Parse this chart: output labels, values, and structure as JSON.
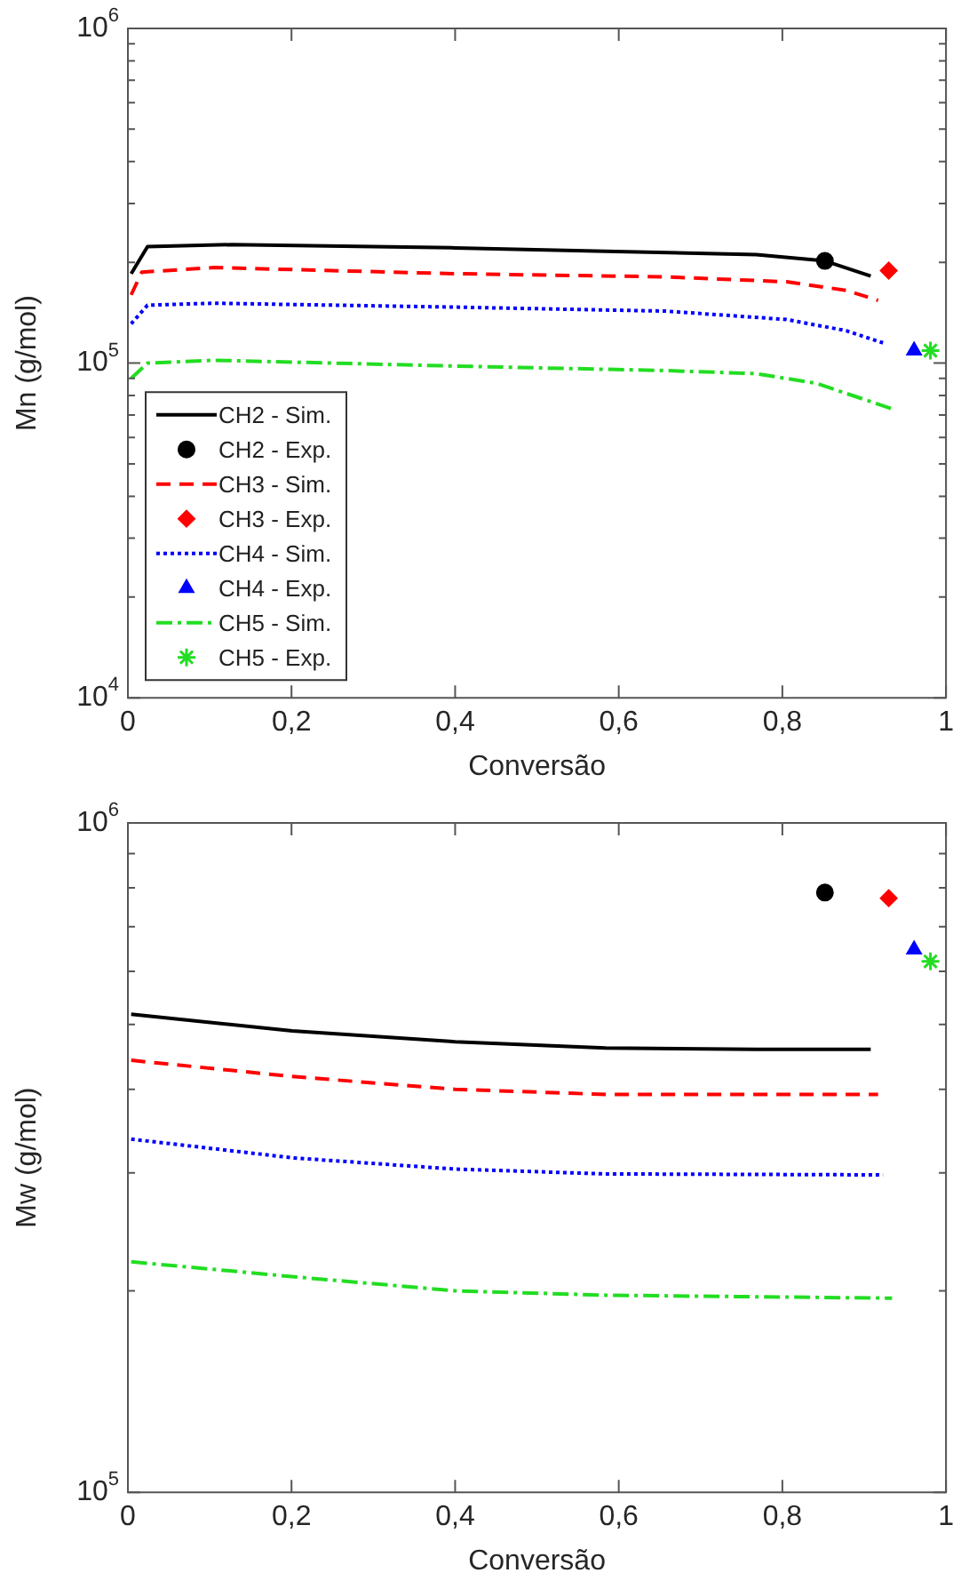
{
  "chart_data": [
    {
      "type": "line",
      "xlabel": "Conversão",
      "ylabel": "Mn (g/mol)",
      "log": "y",
      "legend": "bottom left",
      "xlim": [
        0,
        1
      ],
      "xticks": [
        {
          "value": 0,
          "label": "0"
        },
        {
          "value": 0.2,
          "label": "0,2"
        },
        {
          "value": 0.4,
          "label": "0,4"
        },
        {
          "value": 0.6,
          "label": "0,6"
        },
        {
          "value": 0.8,
          "label": "0,8"
        },
        {
          "value": 1,
          "label": "1"
        }
      ],
      "ylim": [
        10000,
        1000000
      ],
      "yticks": [
        {
          "value": 10000,
          "label": "10$^{4}$"
        },
        {
          "value": 20000,
          "label": null
        },
        {
          "value": 30000,
          "label": null
        },
        {
          "value": 40000,
          "label": null
        },
        {
          "value": 50000,
          "label": null
        },
        {
          "value": 60000,
          "label": null
        },
        {
          "value": 70000,
          "label": null
        },
        {
          "value": 80000,
          "label": null
        },
        {
          "value": 90000,
          "label": null
        },
        {
          "value": 100000,
          "label": "10$^{5}$"
        },
        {
          "value": 200000,
          "label": null
        },
        {
          "value": 300000,
          "label": null
        },
        {
          "value": 400000,
          "label": null
        },
        {
          "value": 500000,
          "label": null
        },
        {
          "value": 600000,
          "label": null
        },
        {
          "value": 700000,
          "label": null
        },
        {
          "value": 800000,
          "label": null
        },
        {
          "value": 900000,
          "label": null
        },
        {
          "value": 1000000,
          "label": "10$^{6}$"
        }
      ],
      "series": [
        {
          "name": "CH2 - Sim.",
          "type": "line",
          "line_style": "solid",
          "color": "#000000",
          "x": [
            0.004,
            0.024,
            0.127,
            0.4,
            0.584,
            0.768,
            0.852,
            0.908
          ],
          "values": [
            185000,
            223000,
            226000,
            221000,
            216000,
            211000,
            202000,
            182000
          ]
        },
        {
          "name": "CH2 - Exp.",
          "type": "scatter",
          "marker": "circle",
          "color": "#000000",
          "x": [
            0.852
          ],
          "values": [
            202000
          ]
        },
        {
          "name": "CH3 - Sim.",
          "type": "line",
          "line_style": "dashed",
          "color": "#ff0000",
          "x": [
            0.004,
            0.017,
            0.105,
            0.4,
            0.658,
            0.805,
            0.878,
            0.917
          ],
          "values": [
            160000,
            187000,
            193000,
            185000,
            181000,
            175000,
            165000,
            154000
          ]
        },
        {
          "name": "CH3 - Exp.",
          "type": "scatter",
          "marker": "diamond",
          "color": "#ff0000",
          "x": [
            0.93
          ],
          "values": [
            189000
          ]
        },
        {
          "name": "CH4 - Sim.",
          "type": "line",
          "line_style": "dotted",
          "color": "#0000ff",
          "x": [
            0.004,
            0.024,
            0.105,
            0.4,
            0.658,
            0.805,
            0.878,
            0.923
          ],
          "values": [
            131000,
            149000,
            151000,
            147000,
            143000,
            135000,
            125000,
            115000
          ]
        },
        {
          "name": "CH4 - Exp.",
          "type": "scatter",
          "marker": "triangle",
          "color": "#0000ff",
          "x": [
            0.961
          ],
          "values": [
            109000
          ]
        },
        {
          "name": "CH5 - Sim.",
          "type": "line",
          "line_style": "dashdot",
          "color": "#22dd22",
          "x": [
            0.004,
            0.024,
            0.105,
            0.4,
            0.658,
            0.768,
            0.842,
            0.934
          ],
          "values": [
            90000,
            100000,
            102000,
            98000,
            95000,
            93000,
            87000,
            73000
          ]
        },
        {
          "name": "CH5 - Exp.",
          "type": "scatter",
          "marker": "cross",
          "color": "#22dd22",
          "x": [
            0.981
          ],
          "values": [
            109000
          ]
        }
      ]
    },
    {
      "type": "line",
      "xlabel": "Conversão",
      "ylabel": "Mw (g/mol)",
      "log": "y",
      "xlim": [
        0,
        1
      ],
      "xticks": [
        {
          "value": 0,
          "label": "0"
        },
        {
          "value": 0.2,
          "label": "0,2"
        },
        {
          "value": 0.4,
          "label": "0,4"
        },
        {
          "value": 0.6,
          "label": "0,6"
        },
        {
          "value": 0.8,
          "label": "0,8"
        },
        {
          "value": 1,
          "label": "1"
        }
      ],
      "ylim": [
        100000,
        1000000
      ],
      "yticks": [
        {
          "value": 100000,
          "label": "10$^{5}$"
        },
        {
          "value": 200000,
          "label": null
        },
        {
          "value": 300000,
          "label": null
        },
        {
          "value": 400000,
          "label": null
        },
        {
          "value": 500000,
          "label": null
        },
        {
          "value": 600000,
          "label": null
        },
        {
          "value": 700000,
          "label": null
        },
        {
          "value": 800000,
          "label": null
        },
        {
          "value": 900000,
          "label": null
        },
        {
          "value": 1000000,
          "label": "10$^{6}$"
        }
      ],
      "series": [
        {
          "type": "line",
          "line_style": "solid",
          "color": "#000000",
          "x": [
            0.004,
            0.201,
            0.4,
            0.584,
            0.768,
            0.908
          ],
          "values": [
            518000,
            489000,
            471000,
            461000,
            459000,
            459000
          ]
        },
        {
          "type": "scatter",
          "marker": "circle",
          "color": "#000000",
          "x": [
            0.852
          ],
          "values": [
            787000
          ]
        },
        {
          "type": "line",
          "line_style": "dashed",
          "color": "#ff0000",
          "x": [
            0.004,
            0.201,
            0.4,
            0.584,
            0.917
          ],
          "values": [
            442000,
            418000,
            400000,
            393000,
            393000
          ]
        },
        {
          "type": "scatter",
          "marker": "diamond",
          "color": "#ff0000",
          "x": [
            0.93
          ],
          "values": [
            772000
          ]
        },
        {
          "type": "line",
          "line_style": "dotted",
          "color": "#0000ff",
          "x": [
            0.004,
            0.201,
            0.4,
            0.584,
            0.923
          ],
          "values": [
            337000,
            316000,
            304000,
            299000,
            298000
          ]
        },
        {
          "type": "scatter",
          "marker": "triangle",
          "color": "#0000ff",
          "x": [
            0.961
          ],
          "values": [
            647000
          ]
        },
        {
          "type": "line",
          "line_style": "dashdot",
          "color": "#22dd22",
          "x": [
            0.004,
            0.201,
            0.4,
            0.584,
            0.934
          ],
          "values": [
            221000,
            210000,
            200000,
            197000,
            195000
          ]
        },
        {
          "type": "scatter",
          "marker": "cross",
          "color": "#22dd22",
          "x": [
            0.981
          ],
          "values": [
            621000
          ]
        }
      ]
    }
  ]
}
